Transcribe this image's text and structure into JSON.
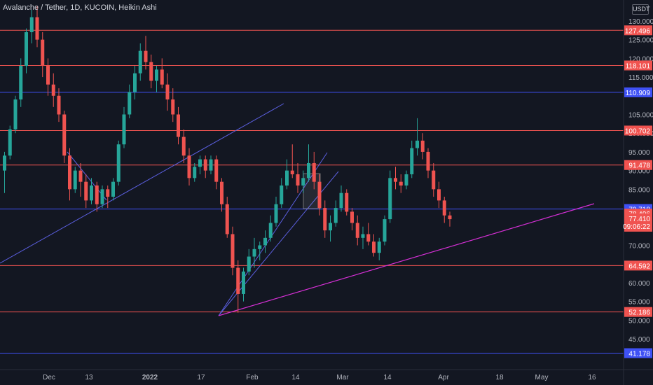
{
  "header": {
    "title": "Avalanche / Tether, 1D, KUCOIN, Heikin Ashi",
    "unit": "USDT"
  },
  "chart_data": {
    "type": "candlestick",
    "y_ticks": [
      130.0,
      125.0,
      120.0,
      115.0,
      105.0,
      100.0,
      95.0,
      90.0,
      85.0,
      70.0,
      60.0,
      55.0,
      50.0,
      45.0
    ],
    "y_tick_labels": [
      "130.000",
      "125.000",
      "120.000",
      "115.000",
      "105.000",
      "100.000",
      "95.000",
      "90.000",
      "85.000",
      "70.000",
      "60.000",
      "55.000",
      "50.000",
      "45.000"
    ],
    "x_labels": [
      "Dec",
      "13",
      "2022",
      "17",
      "Feb",
      "14",
      "Mar",
      "14",
      "Apr",
      "18",
      "May",
      "16"
    ],
    "price_lines": [
      {
        "value": 127.496,
        "label": "127.496",
        "color": "#f05350"
      },
      {
        "value": 118.101,
        "label": "118.101",
        "color": "#f05350"
      },
      {
        "value": 110.909,
        "label": "110.909",
        "color": "#3f51f5"
      },
      {
        "value": 100.702,
        "label": "100.702",
        "color": "#f05350"
      },
      {
        "value": 91.478,
        "label": "91.478",
        "color": "#f05350"
      },
      {
        "value": 79.718,
        "label": "79.718",
        "color": "#3f51f5"
      },
      {
        "value": 64.592,
        "label": "64.592",
        "color": "#f05350"
      },
      {
        "value": 52.186,
        "label": "52.186",
        "color": "#f05350"
      },
      {
        "value": 41.178,
        "label": "41.178",
        "color": "#3f51f5"
      }
    ],
    "current_price": {
      "value": 78.496,
      "label": "78.496"
    },
    "last_price": {
      "value": 77.41,
      "label": "77.410",
      "countdown": "09:06:22"
    },
    "candles": [
      [
        90,
        95,
        84,
        94
      ],
      [
        94,
        102,
        93,
        101
      ],
      [
        101,
        110,
        100,
        109
      ],
      [
        109,
        120,
        107,
        118
      ],
      [
        118,
        128,
        116,
        127
      ],
      [
        127,
        133,
        124,
        131
      ],
      [
        131,
        134,
        123,
        125
      ],
      [
        125,
        127,
        115,
        118
      ],
      [
        118,
        120,
        110,
        113
      ],
      [
        113,
        116,
        107,
        110
      ],
      [
        110,
        112,
        103,
        105
      ],
      [
        105,
        106,
        92,
        94
      ],
      [
        94,
        96,
        82,
        85
      ],
      [
        85,
        91,
        84,
        90
      ],
      [
        90,
        92,
        83,
        87
      ],
      [
        87,
        89,
        80,
        82
      ],
      [
        82,
        88,
        81,
        86
      ],
      [
        86,
        87,
        79,
        81
      ],
      [
        81,
        86,
        80,
        85
      ],
      [
        85,
        86,
        80,
        83
      ],
      [
        83,
        88,
        82,
        87
      ],
      [
        87,
        98,
        86,
        97
      ],
      [
        97,
        107,
        96,
        105
      ],
      [
        105,
        113,
        104,
        111
      ],
      [
        111,
        118,
        109,
        116
      ],
      [
        116,
        124,
        114,
        122
      ],
      [
        122,
        126,
        117,
        119
      ],
      [
        119,
        121,
        112,
        114
      ],
      [
        114,
        118,
        111,
        117
      ],
      [
        117,
        120,
        112,
        113
      ],
      [
        113,
        116,
        106,
        109
      ],
      [
        109,
        112,
        103,
        105
      ],
      [
        105,
        107,
        97,
        99
      ],
      [
        99,
        101,
        92,
        94
      ],
      [
        94,
        96,
        86,
        88
      ],
      [
        88,
        92,
        87,
        91
      ],
      [
        91,
        94,
        89,
        93
      ],
      [
        93,
        94,
        88,
        90
      ],
      [
        90,
        94,
        89,
        93
      ],
      [
        93,
        94,
        85,
        87
      ],
      [
        87,
        88,
        79,
        81
      ],
      [
        81,
        83,
        72,
        73
      ],
      [
        73,
        75,
        62,
        64
      ],
      [
        64,
        66,
        52,
        57
      ],
      [
        57,
        64,
        55,
        63
      ],
      [
        63,
        69,
        62,
        67
      ],
      [
        67,
        72,
        64,
        69
      ],
      [
        69,
        71,
        66,
        70
      ],
      [
        70,
        74,
        68,
        72
      ],
      [
        72,
        78,
        71,
        76
      ],
      [
        76,
        83,
        75,
        81
      ],
      [
        81,
        88,
        80,
        86
      ],
      [
        86,
        93,
        85,
        90
      ],
      [
        90,
        97,
        88,
        89
      ],
      [
        89,
        92,
        84,
        86
      ],
      [
        86,
        90,
        84,
        88
      ],
      [
        88,
        97,
        87,
        92
      ],
      [
        92,
        95,
        85,
        87
      ],
      [
        87,
        89,
        78,
        80
      ],
      [
        80,
        82,
        72,
        74
      ],
      [
        74,
        78,
        71,
        76
      ],
      [
        76,
        82,
        75,
        80
      ],
      [
        80,
        86,
        79,
        84
      ],
      [
        84,
        85,
        78,
        79
      ],
      [
        79,
        80,
        74,
        76
      ],
      [
        76,
        78,
        70,
        72
      ],
      [
        72,
        75,
        69,
        73
      ],
      [
        73,
        76,
        70,
        71
      ],
      [
        71,
        73,
        67,
        68
      ],
      [
        68,
        72,
        66,
        71
      ],
      [
        71,
        78,
        70,
        77
      ],
      [
        77,
        90,
        76,
        88
      ],
      [
        88,
        91,
        85,
        87
      ],
      [
        87,
        89,
        84,
        86
      ],
      [
        86,
        90,
        85,
        89
      ],
      [
        89,
        98,
        88,
        96
      ],
      [
        96,
        104,
        94,
        98
      ],
      [
        98,
        100,
        93,
        95
      ],
      [
        95,
        96,
        88,
        90
      ],
      [
        90,
        92,
        83,
        85
      ],
      [
        85,
        87,
        80,
        82
      ],
      [
        82,
        83,
        76,
        78
      ],
      [
        78,
        79,
        75,
        77
      ]
    ]
  }
}
